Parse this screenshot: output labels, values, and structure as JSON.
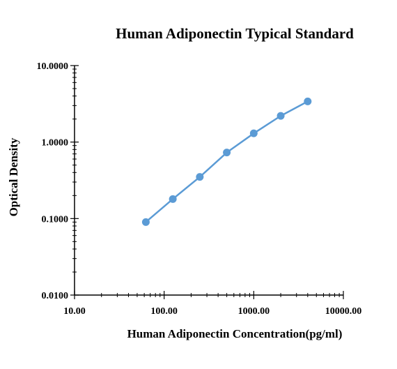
{
  "chart_data": {
    "type": "line",
    "title": "Human Adiponectin Typical Standard",
    "xlabel": "Human Adiponectin  Concentration(pg/ml)",
    "ylabel": "Optical Density",
    "xscale": "log",
    "yscale": "log",
    "xlim": [
      10,
      10000
    ],
    "ylim": [
      0.01,
      10
    ],
    "xticks": [
      10,
      100,
      1000,
      10000
    ],
    "xtick_labels": [
      "10.00",
      "100.00",
      "1000.00",
      "10000.00"
    ],
    "yticks": [
      0.01,
      0.1,
      1,
      10
    ],
    "ytick_labels": [
      "0.0100",
      "0.1000",
      "1.0000",
      "10.0000"
    ],
    "grid": false,
    "series": [
      {
        "x": [
          62.5,
          125,
          250,
          500,
          1000,
          2000,
          4000
        ],
        "y": [
          0.09,
          0.18,
          0.35,
          0.73,
          1.3,
          2.2,
          3.4
        ],
        "color": "#5B9BD5"
      }
    ]
  }
}
